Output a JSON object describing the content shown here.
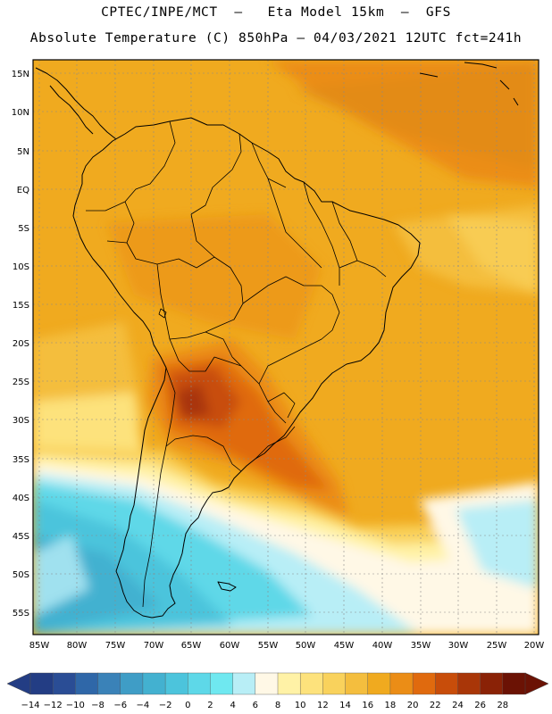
{
  "header": {
    "line1": "CPTEC/INPE/MCT  –   Eta Model 15km  –  GFS",
    "line2": "Absolute Temperature (C) 850hPa – 04/03/2021 12UTC fct=241h"
  },
  "map": {
    "region": "South America",
    "lat_labels": [
      "15N",
      "10N",
      "5N",
      "EQ",
      "5S",
      "10S",
      "15S",
      "20S",
      "25S",
      "30S",
      "35S",
      "40S",
      "45S",
      "50S",
      "55S"
    ],
    "lon_labels": [
      "85W",
      "80W",
      "75W",
      "70W",
      "65W",
      "60W",
      "55W",
      "50W",
      "45W",
      "40W",
      "35W",
      "30W",
      "25W",
      "20W"
    ]
  },
  "colorbar": {
    "labels": [
      "-14",
      "-12",
      "-10",
      "-8",
      "-6",
      "-4",
      "-2",
      "0",
      "2",
      "4",
      "6",
      "8",
      "10",
      "12",
      "14",
      "16",
      "18",
      "20",
      "22",
      "24",
      "26",
      "28"
    ],
    "colors": [
      "#233d84",
      "#2a4d95",
      "#2f67a8",
      "#3a82b8",
      "#3f9dc6",
      "#43b1d0",
      "#4cc4dc",
      "#5ed8e8",
      "#6fe8f0",
      "#b8eef6",
      "#fff8e6",
      "#fff2a6",
      "#fde27c",
      "#f9d25c",
      "#f4be3e",
      "#f0aa1f",
      "#eb8d16",
      "#e06a0e",
      "#c84d0a",
      "#a93608",
      "#8a2206",
      "#6b1204"
    ],
    "low_color": "#233d84",
    "high_color": "#6b1204"
  }
}
